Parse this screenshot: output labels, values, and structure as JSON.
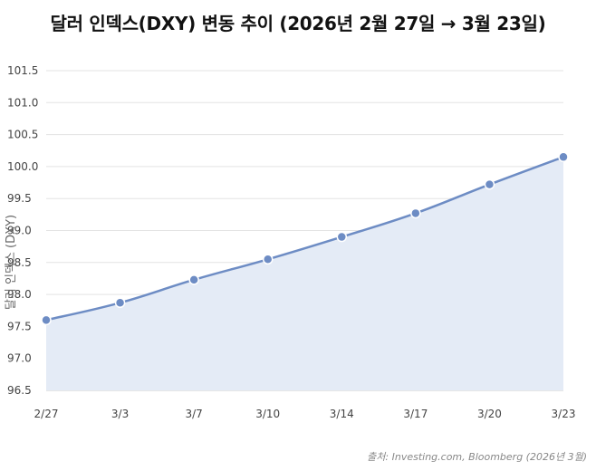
{
  "chart_data": {
    "type": "area",
    "title": "달러 인덱스(DXY) 변동 추이 (2026년 2월 27일 → 3월 23일)",
    "ylabel": "달러 인덱스 (DXY)",
    "xlabel": "",
    "categories": [
      "2/27",
      "3/3",
      "3/7",
      "3/10",
      "3/14",
      "3/17",
      "3/20",
      "3/23"
    ],
    "series": [
      {
        "values": [
          97.6,
          97.87,
          98.23,
          98.55,
          98.9,
          99.27,
          99.72,
          100.15
        ]
      }
    ],
    "ylim": [
      96.5,
      101.5
    ],
    "yticks": [
      "96.5",
      "97.0",
      "97.5",
      "98.0",
      "98.5",
      "99.0",
      "99.5",
      "100.0",
      "100.5",
      "101.0",
      "101.5"
    ],
    "grid": true,
    "legend": "none",
    "colors": {
      "line": "#6d8cc4",
      "fill": "#e4ebf6",
      "grid": "#e3e3e3",
      "axis": "#cccccc"
    }
  },
  "source": "출처: Investing.com, Bloomberg (2026년 3월)"
}
